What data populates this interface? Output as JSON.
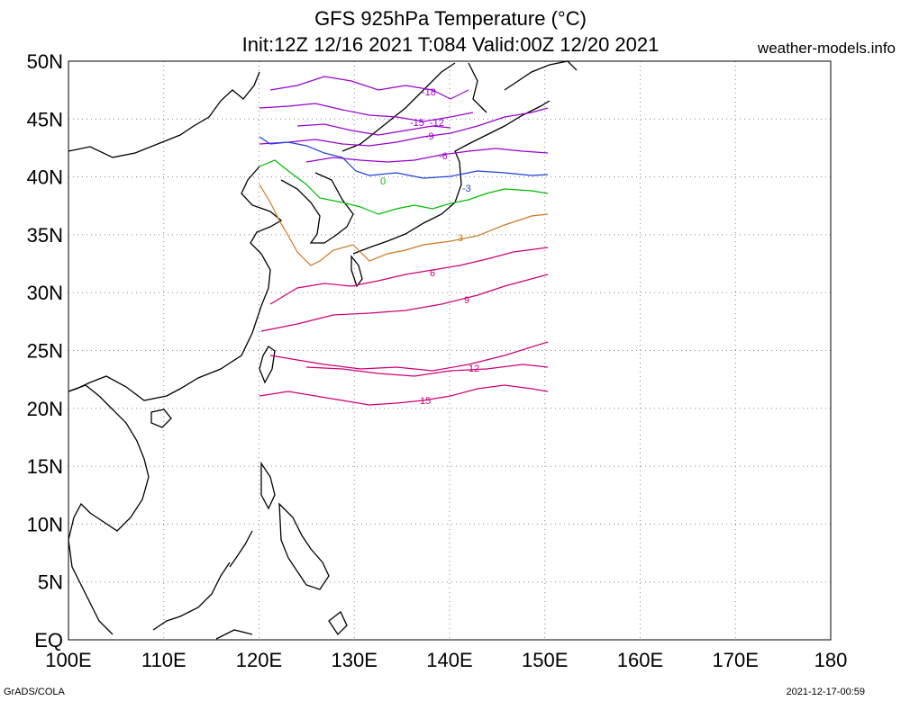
{
  "title_line1": "GFS 925hPa Temperature (°C)",
  "title_line2": "Init:12Z 12/16 2021 T:084 Valid:00Z 12/20 2021",
  "site": "weather-models.info",
  "credit_left": "GrADS/COLA",
  "credit_right": "2021-12-17-00:59",
  "axes": {
    "lon_ticks": [
      "100E",
      "110E",
      "120E",
      "130E",
      "140E",
      "150E",
      "160E",
      "170E",
      "180"
    ],
    "lat_ticks": [
      "50N",
      "45N",
      "40N",
      "35N",
      "30N",
      "25N",
      "20N",
      "15N",
      "10N",
      "5N",
      "EQ"
    ],
    "lon_range": [
      100,
      180
    ],
    "lat_range": [
      0,
      50
    ],
    "grid": "dotted"
  },
  "contours": [
    {
      "label": "-18",
      "color": "#9900cc"
    },
    {
      "label": "-15",
      "color": "#9900cc"
    },
    {
      "label": "-12",
      "color": "#9900cc"
    },
    {
      "label": "-9",
      "color": "#9900cc"
    },
    {
      "label": "-6",
      "color": "#9900cc"
    },
    {
      "label": "-3",
      "color": "#1f3fd6"
    },
    {
      "label": "0",
      "color": "#00bb00"
    },
    {
      "label": "3",
      "color": "#cc7722"
    },
    {
      "label": "6",
      "color": "#cc0077"
    },
    {
      "label": "9",
      "color": "#cc0077"
    },
    {
      "label": "12",
      "color": "#cc0077"
    },
    {
      "label": "15",
      "color": "#cc0077"
    }
  ]
}
